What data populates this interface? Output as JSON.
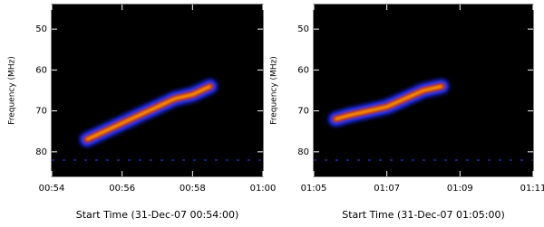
{
  "chart_data": [
    {
      "type": "spectrogram",
      "xlabel": "Start Time (31-Dec-07 00:54:00)",
      "ylabel": "Frequency (MHz)",
      "xlim": [
        54,
        60
      ],
      "xticks": [
        {
          "value": 54,
          "label": "00:54"
        },
        {
          "value": 56,
          "label": "00:56"
        },
        {
          "value": 58,
          "label": "00:58"
        },
        {
          "value": 60,
          "label": "01:00"
        }
      ],
      "ylim": [
        86,
        44
      ],
      "yticks": [
        50,
        60,
        70,
        80
      ],
      "burst": {
        "x": [
          55.0,
          55.5,
          56.0,
          56.5,
          57.0,
          57.5,
          58.0,
          58.5
        ],
        "y": [
          77,
          75,
          73,
          71,
          69,
          67,
          66,
          64
        ]
      }
    },
    {
      "type": "spectrogram",
      "xlabel": "Start Time (31-Dec-07 01:05:00)",
      "ylabel": "Frequency (MHz)",
      "xlim": [
        65,
        71
      ],
      "xticks": [
        {
          "value": 65,
          "label": "01:05"
        },
        {
          "value": 67,
          "label": "01:07"
        },
        {
          "value": 69,
          "label": "01:09"
        },
        {
          "value": 71,
          "label": "01:11"
        }
      ],
      "ylim": [
        86,
        44
      ],
      "yticks": [
        50,
        60,
        70,
        80
      ],
      "burst": {
        "x": [
          65.6,
          66.0,
          66.5,
          67.0,
          67.5,
          68.0,
          68.5
        ],
        "y": [
          72,
          71,
          70,
          69,
          67,
          65,
          64
        ]
      }
    }
  ]
}
